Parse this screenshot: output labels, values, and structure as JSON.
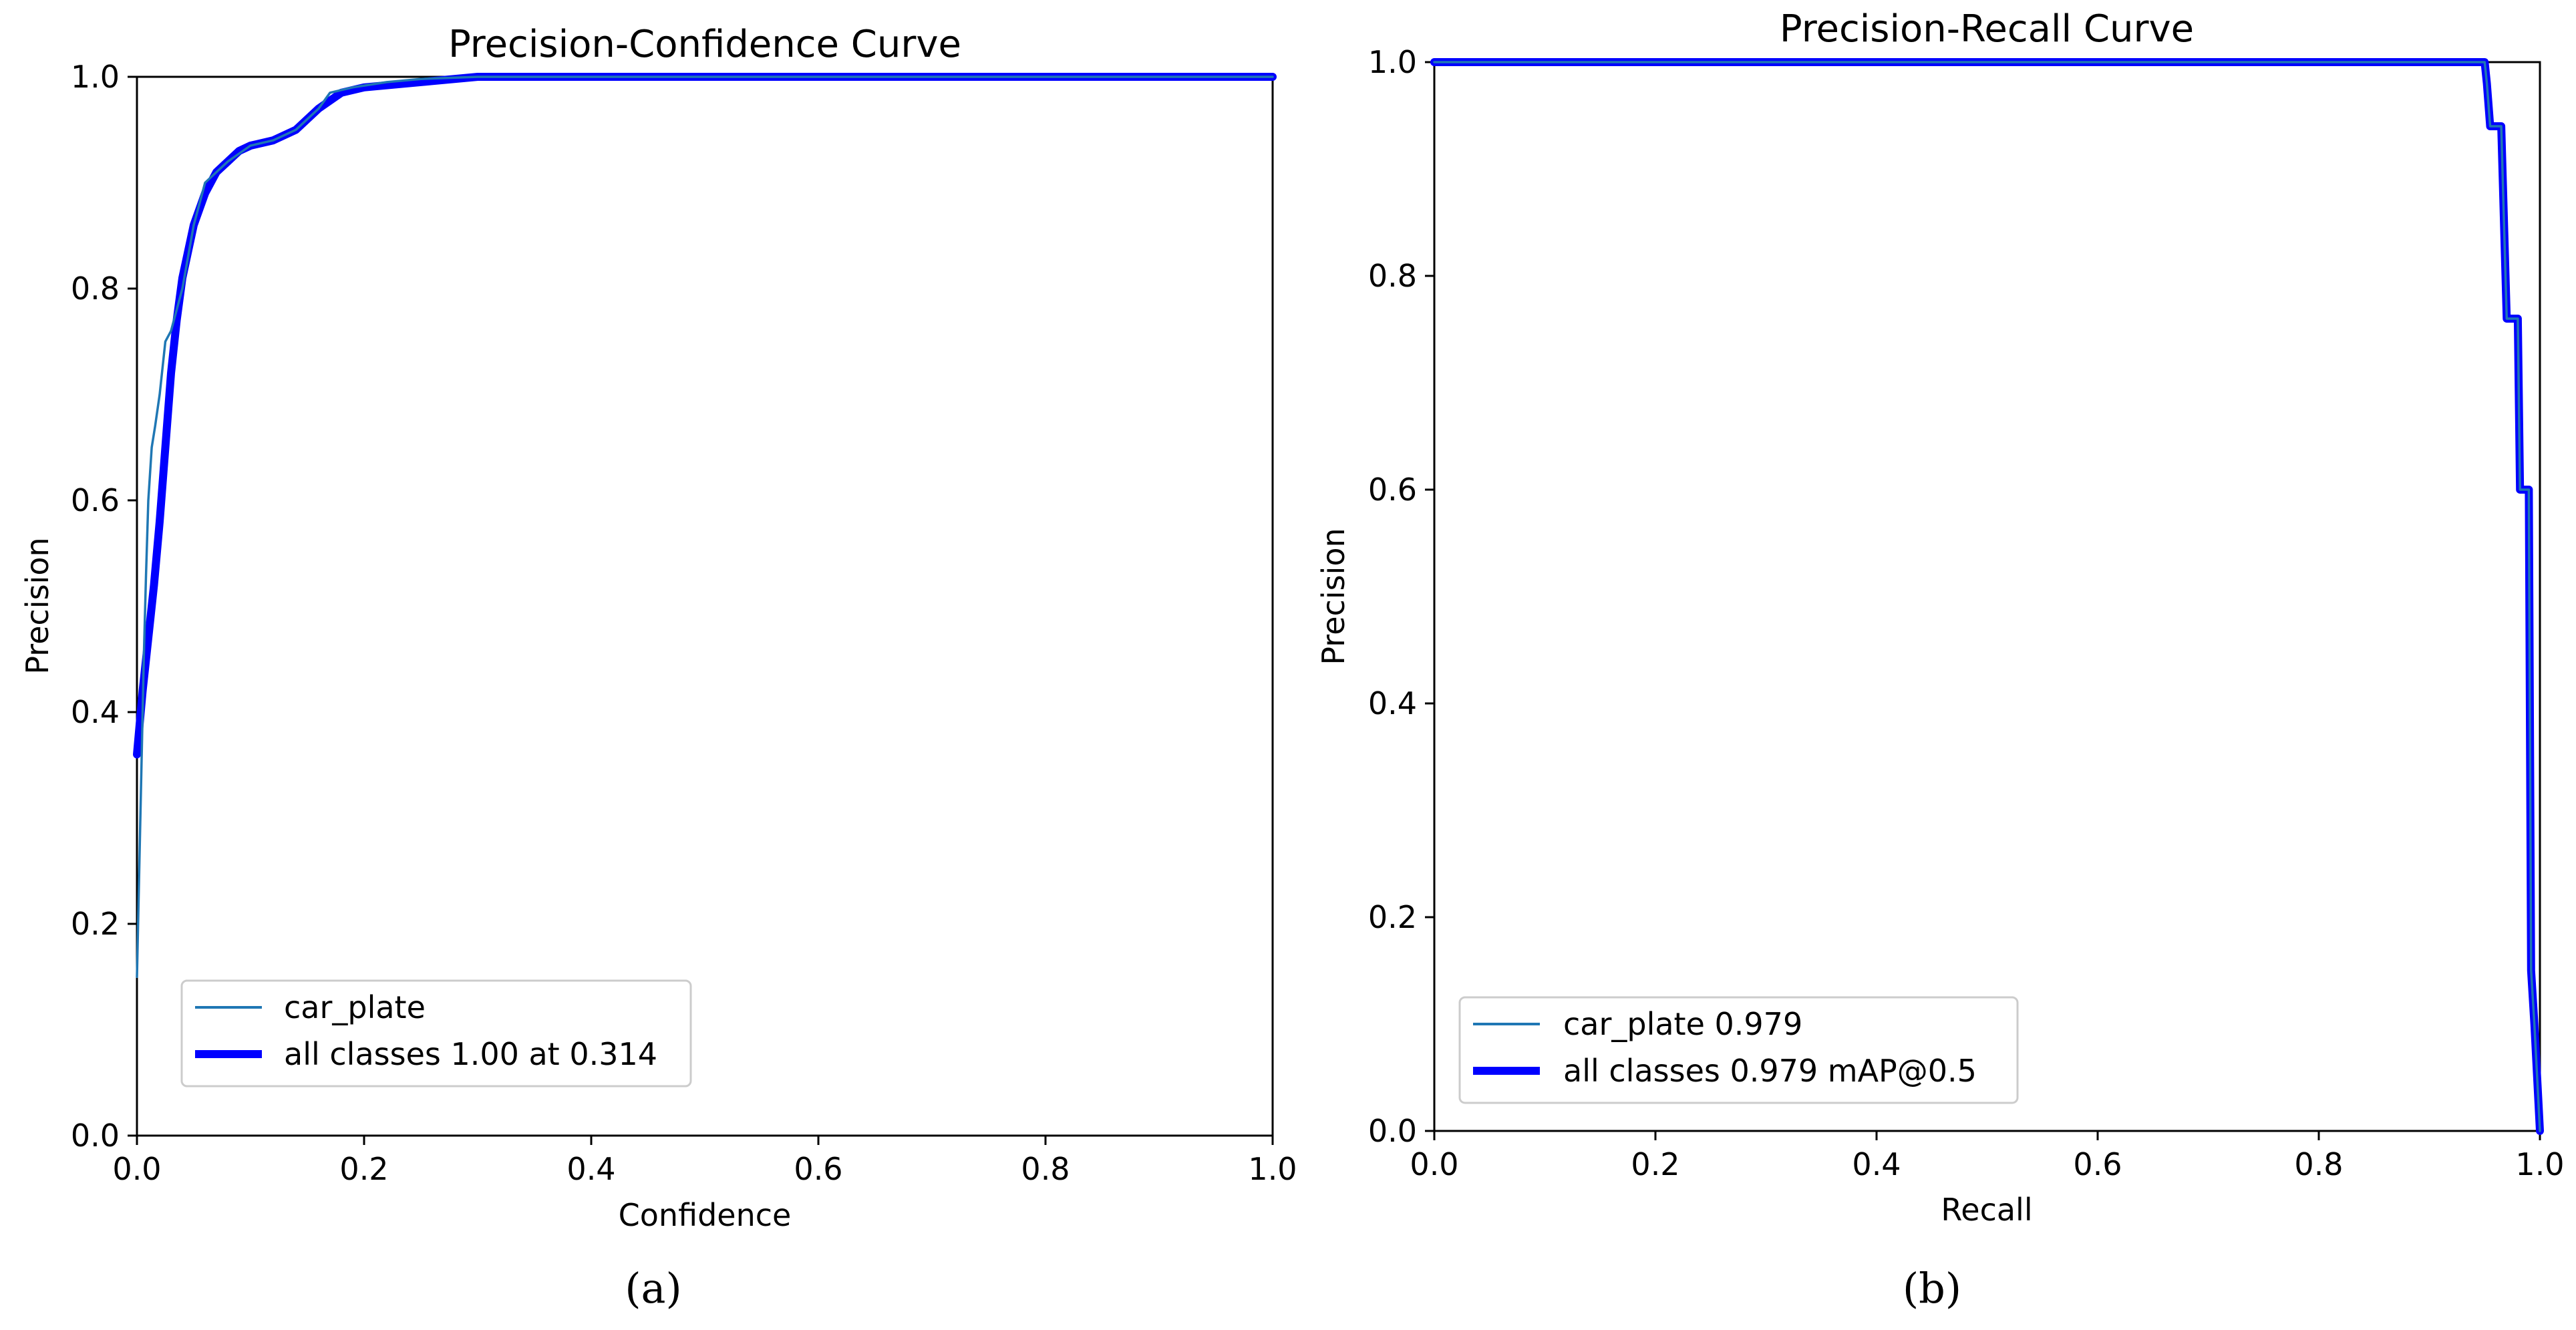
{
  "chart_data": [
    {
      "type": "line",
      "title": "Precision-Confidence Curve",
      "xlabel": "Confidence",
      "ylabel": "Precision",
      "xlim": [
        0,
        1
      ],
      "ylim": [
        0,
        1
      ],
      "xticks": [
        "0.0",
        "0.2",
        "0.4",
        "0.6",
        "0.8",
        "1.0"
      ],
      "yticks": [
        "0.0",
        "0.2",
        "0.4",
        "0.6",
        "0.8",
        "1.0"
      ],
      "legend_position": "lower-left",
      "caption": "(a)",
      "series": [
        {
          "name": "car_plate",
          "color": "#1f77b4",
          "style": "thin",
          "x": [
            0.0,
            0.002,
            0.004,
            0.006,
            0.008,
            0.01,
            0.013,
            0.016,
            0.02,
            0.025,
            0.03,
            0.035,
            0.04,
            0.045,
            0.05,
            0.055,
            0.06,
            0.07,
            0.08,
            0.1,
            0.12,
            0.13,
            0.14,
            0.16,
            0.17,
            0.19,
            0.22,
            0.25,
            0.3,
            0.4,
            0.6,
            0.8,
            1.0
          ],
          "y": [
            0.15,
            0.25,
            0.35,
            0.45,
            0.53,
            0.6,
            0.65,
            0.67,
            0.7,
            0.75,
            0.76,
            0.78,
            0.8,
            0.83,
            0.86,
            0.88,
            0.9,
            0.91,
            0.92,
            0.935,
            0.94,
            0.945,
            0.95,
            0.97,
            0.985,
            0.99,
            0.995,
            0.998,
            1.0,
            1.0,
            1.0,
            1.0,
            1.0
          ]
        },
        {
          "name": "all classes 1.00 at 0.314",
          "color": "#0000ff",
          "style": "thick",
          "x": [
            0.0,
            0.005,
            0.01,
            0.015,
            0.02,
            0.025,
            0.03,
            0.035,
            0.04,
            0.05,
            0.06,
            0.07,
            0.08,
            0.09,
            0.1,
            0.12,
            0.14,
            0.16,
            0.18,
            0.2,
            0.25,
            0.3,
            0.4,
            0.6,
            0.8,
            1.0
          ],
          "y": [
            0.36,
            0.42,
            0.47,
            0.52,
            0.58,
            0.65,
            0.72,
            0.77,
            0.81,
            0.86,
            0.89,
            0.91,
            0.92,
            0.93,
            0.935,
            0.94,
            0.95,
            0.97,
            0.985,
            0.99,
            0.995,
            1.0,
            1.0,
            1.0,
            1.0,
            1.0
          ]
        }
      ]
    },
    {
      "type": "line",
      "title": "Precision-Recall Curve",
      "xlabel": "Recall",
      "ylabel": "Precision",
      "xlim": [
        0,
        1
      ],
      "ylim": [
        0,
        1
      ],
      "xticks": [
        "0.0",
        "0.2",
        "0.4",
        "0.6",
        "0.8",
        "1.0"
      ],
      "yticks": [
        "0.0",
        "0.2",
        "0.4",
        "0.6",
        "0.8",
        "1.0"
      ],
      "legend_position": "lower-left",
      "caption": "(b)",
      "series": [
        {
          "name": "car_plate 0.979",
          "color": "#1f77b4",
          "style": "thin",
          "x": [
            0.0,
            0.95,
            0.952,
            0.955,
            0.96,
            0.965,
            0.97,
            0.975,
            0.98,
            0.982,
            0.985,
            0.99,
            0.992,
            0.995,
            1.0
          ],
          "y": [
            1.0,
            1.0,
            0.98,
            0.94,
            0.94,
            0.94,
            0.76,
            0.76,
            0.76,
            0.6,
            0.6,
            0.6,
            0.15,
            0.1,
            0.0
          ]
        },
        {
          "name": "all classes 0.979 mAP@0.5",
          "color": "#0000ff",
          "style": "thick",
          "x": [
            0.0,
            0.95,
            0.952,
            0.955,
            0.96,
            0.965,
            0.97,
            0.975,
            0.98,
            0.982,
            0.985,
            0.99,
            0.992,
            0.995,
            1.0
          ],
          "y": [
            1.0,
            1.0,
            0.98,
            0.94,
            0.94,
            0.94,
            0.76,
            0.76,
            0.76,
            0.6,
            0.6,
            0.6,
            0.15,
            0.1,
            0.0
          ]
        }
      ]
    }
  ]
}
